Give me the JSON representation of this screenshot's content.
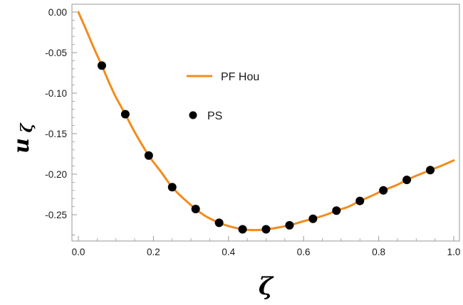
{
  "chart_data": {
    "type": "line",
    "title": "",
    "xlabel": "ζ",
    "ylabel": "u",
    "ylabel_subscript": "ζ",
    "xlim": [
      0.0,
      1.0
    ],
    "ylim": [
      -0.285,
      0.005
    ],
    "x_ticks": [
      "0.0",
      "0.2",
      "0.4",
      "0.6",
      "0.8",
      "1.0"
    ],
    "y_ticks": [
      "0.00",
      "-0.05",
      "-0.10",
      "-0.15",
      "-0.20",
      "-0.25"
    ],
    "grid": false,
    "legend_position": "upper-middle",
    "series": [
      {
        "name": "PF Hou",
        "kind": "line",
        "color": "#f28c1c",
        "x": [
          0.0,
          0.02,
          0.04,
          0.0625,
          0.08,
          0.1,
          0.125,
          0.15,
          0.1875,
          0.22,
          0.25,
          0.28,
          0.3125,
          0.34,
          0.375,
          0.4,
          0.4375,
          0.47,
          0.5,
          0.53,
          0.5625,
          0.6,
          0.625,
          0.66,
          0.6875,
          0.72,
          0.75,
          0.78,
          0.8125,
          0.85,
          0.875,
          0.9,
          0.9375,
          0.97,
          1.0
        ],
        "y": [
          0.0,
          -0.021,
          -0.043,
          -0.066,
          -0.085,
          -0.105,
          -0.126,
          -0.148,
          -0.177,
          -0.197,
          -0.216,
          -0.23,
          -0.243,
          -0.252,
          -0.26,
          -0.264,
          -0.268,
          -0.269,
          -0.268,
          -0.266,
          -0.263,
          -0.258,
          -0.255,
          -0.25,
          -0.245,
          -0.24,
          -0.233,
          -0.227,
          -0.22,
          -0.213,
          -0.207,
          -0.202,
          -0.195,
          -0.189,
          -0.183
        ]
      },
      {
        "name": "PS",
        "kind": "scatter",
        "color": "#000000",
        "x": [
          0.0625,
          0.125,
          0.1875,
          0.25,
          0.3125,
          0.375,
          0.4375,
          0.5,
          0.5625,
          0.625,
          0.6875,
          0.75,
          0.8125,
          0.875,
          0.9375
        ],
        "y": [
          -0.066,
          -0.126,
          -0.177,
          -0.216,
          -0.243,
          -0.26,
          -0.268,
          -0.268,
          -0.263,
          -0.255,
          -0.245,
          -0.233,
          -0.22,
          -0.207,
          -0.195
        ]
      }
    ]
  }
}
